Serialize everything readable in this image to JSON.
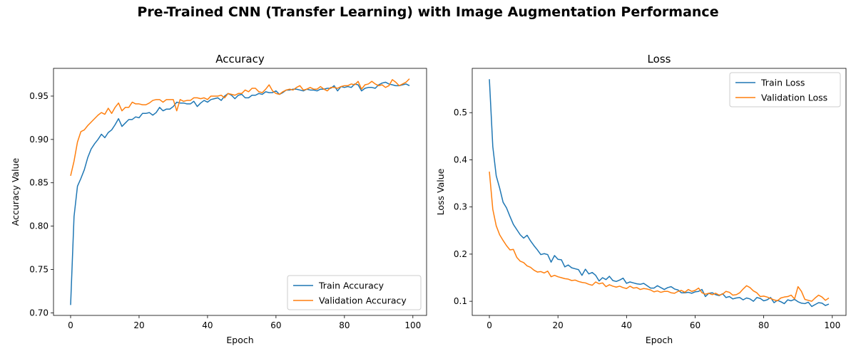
{
  "figure": {
    "title": "Pre-Trained CNN (Transfer Learning) with Image Augmentation Performance"
  },
  "colors": {
    "train": "#1f77b4",
    "validation": "#ff7f0e"
  },
  "chart_data": [
    {
      "type": "line",
      "title": "Accuracy",
      "xlabel": "Epoch",
      "ylabel": "Accuracy Value",
      "xlim": [
        -5,
        104
      ],
      "ylim": [
        0.697,
        0.982
      ],
      "xticks": [
        0,
        20,
        40,
        60,
        80,
        100
      ],
      "yticks": [
        0.7,
        0.75,
        0.8,
        0.85,
        0.9,
        0.95
      ],
      "ytick_labels": [
        "0.70",
        "0.75",
        "0.80",
        "0.85",
        "0.90",
        "0.95"
      ],
      "legend_position": "lower-right",
      "grid": false,
      "series": [
        {
          "name": "Train Accuracy",
          "color": "#1f77b4",
          "values": [
            0.709,
            0.811,
            0.846,
            0.855,
            0.865,
            0.879,
            0.889,
            0.895,
            0.9,
            0.906,
            0.902,
            0.908,
            0.911,
            0.917,
            0.924,
            0.915,
            0.919,
            0.923,
            0.923,
            0.926,
            0.925,
            0.93,
            0.93,
            0.931,
            0.928,
            0.931,
            0.937,
            0.933,
            0.935,
            0.935,
            0.938,
            0.943,
            0.942,
            0.942,
            0.941,
            0.941,
            0.944,
            0.938,
            0.942,
            0.945,
            0.943,
            0.946,
            0.947,
            0.948,
            0.945,
            0.95,
            0.953,
            0.951,
            0.947,
            0.951,
            0.952,
            0.948,
            0.948,
            0.951,
            0.951,
            0.953,
            0.952,
            0.955,
            0.954,
            0.954,
            0.956,
            0.952,
            0.954,
            0.957,
            0.957,
            0.958,
            0.958,
            0.957,
            0.956,
            0.958,
            0.957,
            0.957,
            0.956,
            0.958,
            0.958,
            0.959,
            0.959,
            0.962,
            0.956,
            0.961,
            0.96,
            0.961,
            0.96,
            0.964,
            0.963,
            0.956,
            0.959,
            0.96,
            0.96,
            0.959,
            0.963,
            0.965,
            0.966,
            0.964,
            0.963,
            0.962,
            0.962,
            0.963,
            0.964,
            0.962
          ]
        },
        {
          "name": "Validation Accuracy",
          "color": "#ff7f0e",
          "values": [
            0.858,
            0.875,
            0.897,
            0.909,
            0.911,
            0.916,
            0.92,
            0.924,
            0.928,
            0.931,
            0.929,
            0.936,
            0.93,
            0.937,
            0.942,
            0.933,
            0.937,
            0.937,
            0.943,
            0.941,
            0.941,
            0.94,
            0.94,
            0.942,
            0.945,
            0.946,
            0.946,
            0.943,
            0.946,
            0.946,
            0.946,
            0.933,
            0.946,
            0.944,
            0.945,
            0.945,
            0.948,
            0.948,
            0.947,
            0.948,
            0.946,
            0.95,
            0.95,
            0.95,
            0.951,
            0.948,
            0.953,
            0.952,
            0.951,
            0.953,
            0.953,
            0.957,
            0.955,
            0.959,
            0.959,
            0.955,
            0.954,
            0.958,
            0.963,
            0.956,
            0.953,
            0.952,
            0.955,
            0.957,
            0.958,
            0.957,
            0.96,
            0.962,
            0.957,
            0.958,
            0.96,
            0.958,
            0.958,
            0.961,
            0.958,
            0.956,
            0.96,
            0.96,
            0.959,
            0.961,
            0.962,
            0.962,
            0.964,
            0.963,
            0.967,
            0.958,
            0.963,
            0.964,
            0.967,
            0.964,
            0.962,
            0.963,
            0.96,
            0.962,
            0.969,
            0.966,
            0.962,
            0.964,
            0.966,
            0.97
          ]
        }
      ]
    },
    {
      "type": "line",
      "title": "Loss",
      "xlabel": "Epoch",
      "ylabel": "Loss Value",
      "xlim": [
        -5,
        104
      ],
      "ylim": [
        0.07,
        0.594
      ],
      "xticks": [
        0,
        20,
        40,
        60,
        80,
        100
      ],
      "yticks": [
        0.1,
        0.2,
        0.3,
        0.4,
        0.5
      ],
      "ytick_labels": [
        "0.1",
        "0.2",
        "0.3",
        "0.4",
        "0.5"
      ],
      "legend_position": "upper-right",
      "grid": false,
      "series": [
        {
          "name": "Train Loss",
          "color": "#1f77b4",
          "values": [
            0.571,
            0.428,
            0.366,
            0.34,
            0.31,
            0.298,
            0.28,
            0.263,
            0.252,
            0.241,
            0.234,
            0.24,
            0.228,
            0.218,
            0.209,
            0.199,
            0.201,
            0.199,
            0.183,
            0.197,
            0.189,
            0.188,
            0.173,
            0.177,
            0.171,
            0.169,
            0.167,
            0.155,
            0.168,
            0.158,
            0.161,
            0.155,
            0.143,
            0.15,
            0.146,
            0.153,
            0.144,
            0.142,
            0.145,
            0.149,
            0.138,
            0.141,
            0.139,
            0.137,
            0.136,
            0.138,
            0.133,
            0.128,
            0.128,
            0.133,
            0.129,
            0.125,
            0.129,
            0.131,
            0.126,
            0.124,
            0.118,
            0.118,
            0.119,
            0.117,
            0.12,
            0.121,
            0.125,
            0.11,
            0.117,
            0.118,
            0.114,
            0.112,
            0.116,
            0.108,
            0.11,
            0.105,
            0.107,
            0.108,
            0.103,
            0.107,
            0.105,
            0.1,
            0.108,
            0.106,
            0.101,
            0.103,
            0.108,
            0.097,
            0.102,
            0.099,
            0.095,
            0.103,
            0.101,
            0.104,
            0.099,
            0.096,
            0.095,
            0.098,
            0.089,
            0.093,
            0.097,
            0.096,
            0.091,
            0.094
          ]
        },
        {
          "name": "Validation Loss",
          "color": "#ff7f0e",
          "values": [
            0.375,
            0.295,
            0.26,
            0.241,
            0.229,
            0.218,
            0.209,
            0.21,
            0.193,
            0.185,
            0.182,
            0.175,
            0.172,
            0.166,
            0.162,
            0.163,
            0.16,
            0.164,
            0.152,
            0.155,
            0.152,
            0.15,
            0.148,
            0.147,
            0.144,
            0.145,
            0.142,
            0.14,
            0.139,
            0.136,
            0.134,
            0.141,
            0.137,
            0.139,
            0.131,
            0.135,
            0.132,
            0.13,
            0.132,
            0.129,
            0.127,
            0.132,
            0.128,
            0.129,
            0.125,
            0.127,
            0.126,
            0.124,
            0.12,
            0.122,
            0.119,
            0.121,
            0.121,
            0.118,
            0.117,
            0.121,
            0.123,
            0.119,
            0.125,
            0.121,
            0.123,
            0.128,
            0.118,
            0.115,
            0.117,
            0.114,
            0.117,
            0.113,
            0.115,
            0.121,
            0.119,
            0.113,
            0.114,
            0.118,
            0.126,
            0.133,
            0.129,
            0.122,
            0.118,
            0.11,
            0.111,
            0.109,
            0.106,
            0.103,
            0.101,
            0.107,
            0.109,
            0.11,
            0.113,
            0.105,
            0.131,
            0.121,
            0.104,
            0.102,
            0.1,
            0.107,
            0.113,
            0.109,
            0.102,
            0.107
          ]
        }
      ]
    }
  ]
}
